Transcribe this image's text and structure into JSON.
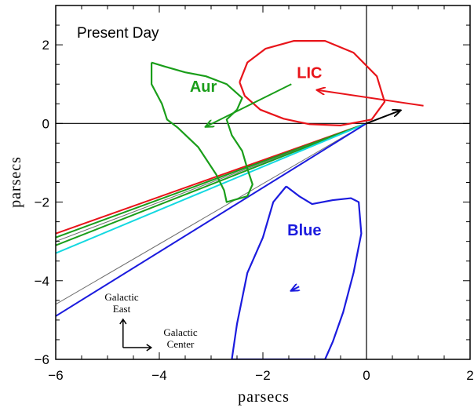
{
  "chart_data": {
    "type": "line",
    "title": "Present Day",
    "xlabel": "parsecs",
    "ylabel": "parsecs",
    "xlim": [
      -6,
      2
    ],
    "ylim": [
      -6,
      3
    ],
    "x_ticks": [
      -6,
      -4,
      -2,
      0,
      2
    ],
    "y_ticks": [
      -6,
      -4,
      -2,
      0,
      2
    ],
    "x_tick_labels": [
      "−6",
      "−4",
      "−2",
      "0",
      "2"
    ],
    "y_tick_labels": [
      "−6",
      "−4",
      "−2",
      "0",
      "2"
    ],
    "grid": false,
    "zero_lines": true,
    "regions": [
      {
        "label": "LIC",
        "color": "#e8141a",
        "label_at": [
          -1.1,
          1.15
        ],
        "outline": [
          [
            -2.45,
            1.05
          ],
          [
            -2.3,
            1.55
          ],
          [
            -1.95,
            1.9
          ],
          [
            -1.4,
            2.1
          ],
          [
            -0.8,
            2.1
          ],
          [
            -0.25,
            1.8
          ],
          [
            0.2,
            1.2
          ],
          [
            0.35,
            0.55
          ],
          [
            0.1,
            0.1
          ],
          [
            -0.5,
            -0.05
          ],
          [
            -1.1,
            -0.02
          ],
          [
            -1.6,
            0.12
          ],
          [
            -2.05,
            0.35
          ],
          [
            -2.35,
            0.7
          ],
          [
            -2.45,
            1.05
          ]
        ],
        "velocity_arrow": [
          [
            1.1,
            0.45
          ],
          [
            -0.95,
            0.85
          ]
        ]
      },
      {
        "label": "Aur",
        "color": "#1a9e1a",
        "label_at": [
          -3.15,
          0.8
        ],
        "outline": [
          [
            -4.15,
            1.55
          ],
          [
            -3.9,
            1.45
          ],
          [
            -3.5,
            1.3
          ],
          [
            -3.1,
            1.2
          ],
          [
            -2.7,
            1.0
          ],
          [
            -2.4,
            0.65
          ],
          [
            -2.5,
            0.35
          ],
          [
            -2.7,
            0.1
          ],
          [
            -2.6,
            -0.3
          ],
          [
            -2.4,
            -0.7
          ],
          [
            -2.3,
            -1.15
          ],
          [
            -2.2,
            -1.55
          ],
          [
            -2.3,
            -1.85
          ],
          [
            -2.7,
            -2.0
          ],
          [
            -2.75,
            -1.7
          ],
          [
            -2.9,
            -1.3
          ],
          [
            -3.25,
            -0.6
          ],
          [
            -3.65,
            -0.1
          ],
          [
            -3.85,
            0.1
          ],
          [
            -3.95,
            0.5
          ],
          [
            -4.15,
            1.0
          ],
          [
            -4.15,
            1.55
          ]
        ],
        "velocity_arrow": [
          [
            -1.45,
            1.0
          ],
          [
            -3.1,
            -0.08
          ]
        ]
      },
      {
        "label": "Blue",
        "color": "#1b1bde",
        "label_at": [
          -1.2,
          -2.85
        ],
        "outline": [
          [
            -1.55,
            -1.6
          ],
          [
            -1.45,
            -1.7
          ],
          [
            -1.3,
            -1.85
          ],
          [
            -1.05,
            -2.05
          ],
          [
            -0.65,
            -1.95
          ],
          [
            -0.3,
            -1.9
          ],
          [
            -0.15,
            -2.0
          ],
          [
            -0.1,
            -2.8
          ],
          [
            -0.25,
            -3.8
          ],
          [
            -0.45,
            -4.8
          ],
          [
            -0.65,
            -5.55
          ],
          [
            -0.8,
            -6.0
          ],
          [
            -2.6,
            -6.0
          ],
          [
            -2.5,
            -5.1
          ],
          [
            -2.3,
            -3.8
          ],
          [
            -2.0,
            -2.9
          ],
          [
            -1.8,
            -2.0
          ],
          [
            -1.55,
            -1.6
          ]
        ],
        "velocity_arrow": [
          [
            -1.3,
            -4.15
          ],
          [
            -1.45,
            -4.25
          ]
        ]
      }
    ],
    "rays": [
      {
        "color": "#e8141a",
        "to": [
          -6,
          -2.8
        ]
      },
      {
        "color": "#1a9e1a",
        "to": [
          -6,
          -2.9
        ]
      },
      {
        "color": "#6e6e6e",
        "to": [
          -6,
          -3.0
        ]
      },
      {
        "color": "#1a9e1a",
        "to": [
          -6,
          -3.1
        ]
      },
      {
        "color": "#13d8e0",
        "to": [
          -6,
          -3.3
        ]
      },
      {
        "color": "#6e6e6e",
        "to": [
          -6,
          -4.6
        ]
      },
      {
        "color": "#1b1bde",
        "to": [
          -6,
          -4.9
        ]
      }
    ],
    "sun_velocity_arrow": {
      "color": "#000000",
      "from": [
        0,
        0
      ],
      "to": [
        0.65,
        0.33
      ]
    },
    "compass": {
      "origin": [
        -4.7,
        -5.7
      ],
      "up_label": [
        "Galactic",
        "East"
      ],
      "right_label": [
        "Galactic",
        "Center"
      ]
    }
  }
}
